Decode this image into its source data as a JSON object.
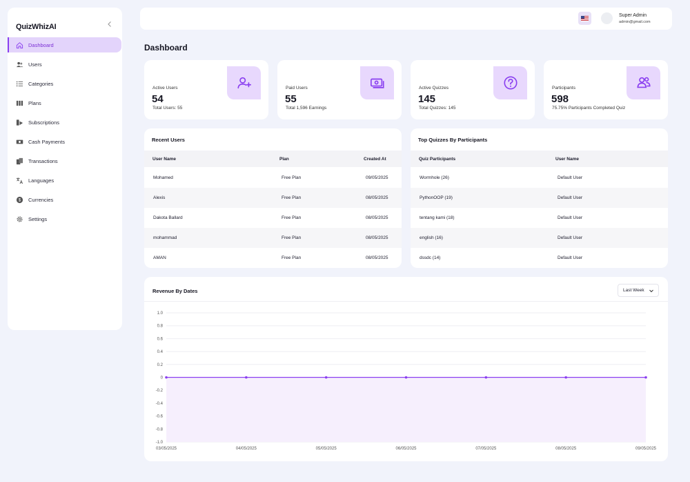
{
  "app": {
    "name": "QuizWhizAI"
  },
  "sidebar": {
    "items": [
      {
        "label": "Dashboard",
        "icon": "home-icon",
        "active": true
      },
      {
        "label": "Users",
        "icon": "users-icon"
      },
      {
        "label": "Categories",
        "icon": "list-icon"
      },
      {
        "label": "Plans",
        "icon": "columns-icon"
      },
      {
        "label": "Subscriptions",
        "icon": "subscriptions-icon"
      },
      {
        "label": "Cash Payments",
        "icon": "cash-icon"
      },
      {
        "label": "Transactions",
        "icon": "transactions-icon"
      },
      {
        "label": "Languages",
        "icon": "translate-icon"
      },
      {
        "label": "Currencies",
        "icon": "currency-icon"
      },
      {
        "label": "Settings",
        "icon": "gear-icon"
      }
    ]
  },
  "header": {
    "user_name": "Super Admin",
    "user_email": "admin@gmail.com",
    "flag": "us-flag-icon"
  },
  "page": {
    "title": "Dashboard"
  },
  "stats": [
    {
      "label": "Active Users",
      "value": "54",
      "sub": "Total Users: 55",
      "icon": "user-plus-icon"
    },
    {
      "label": "Paid Users",
      "value": "55",
      "sub": "Total 1,596 Earnings",
      "icon": "money-icon"
    },
    {
      "label": "Active Quizzes",
      "value": "145",
      "sub": "Total Quizzes: 145",
      "icon": "question-icon"
    },
    {
      "label": "Participants",
      "value": "598",
      "sub": "75.75% Participants Completed Quiz",
      "icon": "participants-icon"
    }
  ],
  "recent_users": {
    "title": "Recent Users",
    "columns": [
      "User Name",
      "Plan",
      "Created At"
    ],
    "rows": [
      [
        "Mohamed",
        "Free Plan",
        "09/05/2025"
      ],
      [
        "Alexis",
        "Free Plan",
        "08/05/2025"
      ],
      [
        "Dakota Ballard",
        "Free Plan",
        "08/05/2025"
      ],
      [
        "mohammad",
        "Free Plan",
        "08/05/2025"
      ],
      [
        "AMAN",
        "Free Plan",
        "08/05/2025"
      ]
    ]
  },
  "top_quizzes": {
    "title": "Top Quizzes By Participants",
    "columns": [
      "Quiz Participants",
      "User Name"
    ],
    "rows": [
      [
        "Wormhole (26)",
        "Default User"
      ],
      [
        "PythonOOP (19)",
        "Default User"
      ],
      [
        "tentang kami (18)",
        "Default User"
      ],
      [
        "english (16)",
        "Default User"
      ],
      [
        "dssdc (14)",
        "Default User"
      ]
    ]
  },
  "revenue": {
    "title": "Revenue By Dates",
    "range": "Last Week"
  },
  "chart_data": {
    "type": "area",
    "title": "Revenue By Dates",
    "x": [
      "03/05/2025",
      "04/05/2025",
      "05/05/2025",
      "06/05/2025",
      "07/05/2025",
      "08/05/2025",
      "09/05/2025"
    ],
    "series": [
      {
        "values": [
          0,
          0,
          0,
          0,
          0,
          0,
          0
        ]
      }
    ],
    "yticks": [
      "1.0",
      "0.8",
      "0.6",
      "0.4",
      "0.2",
      "0",
      "-0.2",
      "-0.4",
      "-0.6",
      "-0.8",
      "-1.0"
    ],
    "ylim": [
      -1,
      1
    ],
    "grid": true,
    "color": "#8a3ff0",
    "fill": "#f6effd"
  },
  "colors": {
    "accent": "#8a3ff0",
    "accent_light": "#e8d8fd",
    "background": "#f1f3fb"
  }
}
